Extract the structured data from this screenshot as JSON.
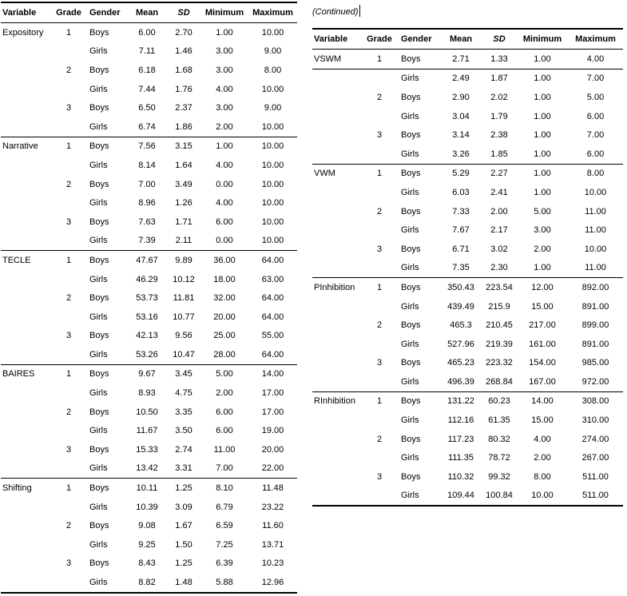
{
  "continued_label": "(Continued)",
  "columns": [
    "Variable",
    "Grade",
    "Gender",
    "Mean",
    "SD",
    "Minimum",
    "Maximum"
  ],
  "left_table": {
    "sections": [
      {
        "variable": "Expository",
        "rows": [
          {
            "grade": "1",
            "gender": "Boys",
            "mean": "6.00",
            "sd": "2.70",
            "min": "1.00",
            "max": "10.00"
          },
          {
            "grade": "",
            "gender": "Girls",
            "mean": "7.11",
            "sd": "1.46",
            "min": "3.00",
            "max": "9.00"
          },
          {
            "grade": "2",
            "gender": "Boys",
            "mean": "6.18",
            "sd": "1.68",
            "min": "3.00",
            "max": "8.00"
          },
          {
            "grade": "",
            "gender": "Girls",
            "mean": "7.44",
            "sd": "1.76",
            "min": "4.00",
            "max": "10.00"
          },
          {
            "grade": "3",
            "gender": "Boys",
            "mean": "6.50",
            "sd": "2.37",
            "min": "3.00",
            "max": "9.00"
          },
          {
            "grade": "",
            "gender": "Girls",
            "mean": "6.74",
            "sd": "1.86",
            "min": "2.00",
            "max": "10.00"
          }
        ]
      },
      {
        "variable": "Narrative",
        "rows": [
          {
            "grade": "1",
            "gender": "Boys",
            "mean": "7.56",
            "sd": "3.15",
            "min": "1.00",
            "max": "10.00"
          },
          {
            "grade": "",
            "gender": "Girls",
            "mean": "8.14",
            "sd": "1.64",
            "min": "4.00",
            "max": "10.00"
          },
          {
            "grade": "2",
            "gender": "Boys",
            "mean": "7.00",
            "sd": "3.49",
            "min": "0.00",
            "max": "10.00"
          },
          {
            "grade": "",
            "gender": "Girls",
            "mean": "8.96",
            "sd": "1.26",
            "min": "4.00",
            "max": "10.00"
          },
          {
            "grade": "3",
            "gender": "Boys",
            "mean": "7.63",
            "sd": "1.71",
            "min": "6.00",
            "max": "10.00"
          },
          {
            "grade": "",
            "gender": "Girls",
            "mean": "7.39",
            "sd": "2.11",
            "min": "0.00",
            "max": "10.00"
          }
        ]
      },
      {
        "variable": "TECLE",
        "rows": [
          {
            "grade": "1",
            "gender": "Boys",
            "mean": "47.67",
            "sd": "9.89",
            "min": "36.00",
            "max": "64.00"
          },
          {
            "grade": "",
            "gender": "Girls",
            "mean": "46.29",
            "sd": "10.12",
            "min": "18.00",
            "max": "63.00"
          },
          {
            "grade": "2",
            "gender": "Boys",
            "mean": "53.73",
            "sd": "11.81",
            "min": "32.00",
            "max": "64.00"
          },
          {
            "grade": "",
            "gender": "Girls",
            "mean": "53.16",
            "sd": "10.77",
            "min": "20.00",
            "max": "64.00"
          },
          {
            "grade": "3",
            "gender": "Boys",
            "mean": "42.13",
            "sd": "9.56",
            "min": "25.00",
            "max": "55.00"
          },
          {
            "grade": "",
            "gender": "Girls",
            "mean": "53.26",
            "sd": "10.47",
            "min": "28.00",
            "max": "64.00"
          }
        ]
      },
      {
        "variable": "BAIRES",
        "rows": [
          {
            "grade": "1",
            "gender": "Boys",
            "mean": "9.67",
            "sd": "3.45",
            "min": "5.00",
            "max": "14.00"
          },
          {
            "grade": "",
            "gender": "Girls",
            "mean": "8.93",
            "sd": "4.75",
            "min": "2.00",
            "max": "17.00"
          },
          {
            "grade": "2",
            "gender": "Boys",
            "mean": "10.50",
            "sd": "3.35",
            "min": "6.00",
            "max": "17.00"
          },
          {
            "grade": "",
            "gender": "Girls",
            "mean": "11.67",
            "sd": "3.50",
            "min": "6.00",
            "max": "19.00"
          },
          {
            "grade": "3",
            "gender": "Boys",
            "mean": "15.33",
            "sd": "2.74",
            "min": "11.00",
            "max": "20.00"
          },
          {
            "grade": "",
            "gender": "Girls",
            "mean": "13.42",
            "sd": "3.31",
            "min": "7.00",
            "max": "22.00"
          }
        ]
      },
      {
        "variable": "Shifting",
        "rows": [
          {
            "grade": "1",
            "gender": "Boys",
            "mean": "10.11",
            "sd": "1.25",
            "min": "8.10",
            "max": "11.48"
          },
          {
            "grade": "",
            "gender": "Girls",
            "mean": "10.39",
            "sd": "3.09",
            "min": "6.79",
            "max": "23.22"
          },
          {
            "grade": "2",
            "gender": "Boys",
            "mean": "9.08",
            "sd": "1.67",
            "min": "6.59",
            "max": "11.60"
          },
          {
            "grade": "",
            "gender": "Girls",
            "mean": "9.25",
            "sd": "1.50",
            "min": "7.25",
            "max": "13.71"
          },
          {
            "grade": "3",
            "gender": "Boys",
            "mean": "8.43",
            "sd": "1.25",
            "min": "6.39",
            "max": "10.23"
          },
          {
            "grade": "",
            "gender": "Girls",
            "mean": "8.82",
            "sd": "1.48",
            "min": "5.88",
            "max": "12.96"
          }
        ]
      }
    ]
  },
  "right_table": {
    "sections": [
      {
        "variable": "VSWM",
        "rules_after_rows": [
          0
        ],
        "rows": [
          {
            "grade": "1",
            "gender": "Boys",
            "mean": "2.71",
            "sd": "1.33",
            "min": "1.00",
            "max": "4.00"
          },
          {
            "grade": "",
            "gender": "Girls",
            "mean": "2.49",
            "sd": "1.87",
            "min": "1.00",
            "max": "7.00"
          },
          {
            "grade": "2",
            "gender": "Boys",
            "mean": "2.90",
            "sd": "2.02",
            "min": "1.00",
            "max": "5.00"
          },
          {
            "grade": "",
            "gender": "Girls",
            "mean": "3.04",
            "sd": "1.79",
            "min": "1.00",
            "max": "6.00"
          },
          {
            "grade": "3",
            "gender": "Boys",
            "mean": "3.14",
            "sd": "2.38",
            "min": "1.00",
            "max": "7.00"
          },
          {
            "grade": "",
            "gender": "Girls",
            "mean": "3.26",
            "sd": "1.85",
            "min": "1.00",
            "max": "6.00"
          }
        ]
      },
      {
        "variable": "VWM",
        "rows": [
          {
            "grade": "1",
            "gender": "Boys",
            "mean": "5.29",
            "sd": "2.27",
            "min": "1.00",
            "max": "8.00"
          },
          {
            "grade": "",
            "gender": "Girls",
            "mean": "6.03",
            "sd": "2.41",
            "min": "1.00",
            "max": "10.00"
          },
          {
            "grade": "2",
            "gender": "Boys",
            "mean": "7.33",
            "sd": "2.00",
            "min": "5.00",
            "max": "11.00"
          },
          {
            "grade": "",
            "gender": "Girls",
            "mean": "7.67",
            "sd": "2.17",
            "min": "3.00",
            "max": "11.00"
          },
          {
            "grade": "3",
            "gender": "Boys",
            "mean": "6.71",
            "sd": "3.02",
            "min": "2.00",
            "max": "10.00"
          },
          {
            "grade": "",
            "gender": "Girls",
            "mean": "7.35",
            "sd": "2.30",
            "min": "1.00",
            "max": "11.00"
          }
        ]
      },
      {
        "variable": "PInhibition",
        "rows": [
          {
            "grade": "1",
            "gender": "Boys",
            "mean": "350.43",
            "sd": "223.54",
            "min": "12.00",
            "max": "892.00"
          },
          {
            "grade": "",
            "gender": "Girls",
            "mean": "439.49",
            "sd": "215.9",
            "min": "15.00",
            "max": "891.00"
          },
          {
            "grade": "2",
            "gender": "Boys",
            "mean": "465.3",
            "sd": "210.45",
            "min": "217.00",
            "max": "899.00"
          },
          {
            "grade": "",
            "gender": "Girls",
            "mean": "527.96",
            "sd": "219.39",
            "min": "161.00",
            "max": "891.00"
          },
          {
            "grade": "3",
            "gender": "Boys",
            "mean": "465.23",
            "sd": "223.32",
            "min": "154.00",
            "max": "985.00"
          },
          {
            "grade": "",
            "gender": "Girls",
            "mean": "496.39",
            "sd": "268.84",
            "min": "167.00",
            "max": "972.00"
          }
        ]
      },
      {
        "variable": "RInhibition",
        "rows": [
          {
            "grade": "1",
            "gender": "Boys",
            "mean": "131.22",
            "sd": "60.23",
            "min": "14.00",
            "max": "308.00"
          },
          {
            "grade": "",
            "gender": "Girls",
            "mean": "112.16",
            "sd": "61.35",
            "min": "15.00",
            "max": "310.00"
          },
          {
            "grade": "2",
            "gender": "Boys",
            "mean": "117.23",
            "sd": "80.32",
            "min": "4.00",
            "max": "274.00"
          },
          {
            "grade": "",
            "gender": "Girls",
            "mean": "111.35",
            "sd": "78.72",
            "min": "2.00",
            "max": "267.00"
          },
          {
            "grade": "3",
            "gender": "Boys",
            "mean": "110.32",
            "sd": "99.32",
            "min": "8.00",
            "max": "511.00"
          },
          {
            "grade": "",
            "gender": "Girls",
            "mean": "109.44",
            "sd": "100.84",
            "min": "10.00",
            "max": "511.00"
          }
        ]
      }
    ]
  }
}
